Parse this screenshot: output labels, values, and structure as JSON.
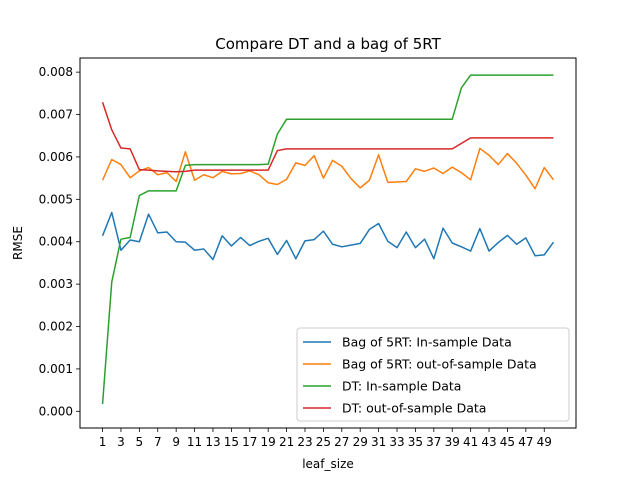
{
  "chart_data": {
    "type": "line",
    "title": "Compare DT and a bag of 5RT",
    "xlabel": "leaf_size",
    "ylabel": "RMSE",
    "xlim": [
      -1.45,
      52.45
    ],
    "ylim": [
      -0.0003935,
      0.0083335
    ],
    "xticks": [
      1,
      3,
      5,
      7,
      9,
      11,
      13,
      15,
      17,
      19,
      21,
      23,
      25,
      27,
      29,
      31,
      33,
      35,
      37,
      39,
      41,
      43,
      45,
      47,
      49
    ],
    "yticks": [
      0.0,
      0.001,
      0.002,
      0.003,
      0.004,
      0.005,
      0.006,
      0.007,
      0.008
    ],
    "ytick_labels": [
      "0.000",
      "0.001",
      "0.002",
      "0.003",
      "0.004",
      "0.005",
      "0.006",
      "0.007",
      "0.008"
    ],
    "grid": false,
    "legend_position": "lower right",
    "x": [
      1,
      2,
      3,
      4,
      5,
      6,
      7,
      8,
      9,
      10,
      11,
      12,
      13,
      14,
      15,
      16,
      17,
      18,
      19,
      20,
      21,
      22,
      23,
      24,
      25,
      26,
      27,
      28,
      29,
      30,
      31,
      32,
      33,
      34,
      35,
      36,
      37,
      38,
      39,
      40,
      41,
      42,
      43,
      44,
      45,
      46,
      47,
      48,
      49,
      50
    ],
    "series": [
      {
        "name": "Bag of 5RT: In-sample Data",
        "color": "#1f77b4",
        "values": [
          0.00414,
          0.00469,
          0.0038,
          0.00404,
          0.004,
          0.00465,
          0.00421,
          0.00423,
          0.004,
          0.00399,
          0.0038,
          0.00383,
          0.00358,
          0.00414,
          0.0039,
          0.0041,
          0.00391,
          0.00401,
          0.00408,
          0.0037,
          0.00403,
          0.0036,
          0.00402,
          0.00405,
          0.00425,
          0.00394,
          0.00388,
          0.00392,
          0.00396,
          0.00429,
          0.00443,
          0.00401,
          0.00386,
          0.00423,
          0.00386,
          0.00406,
          0.0036,
          0.00432,
          0.00397,
          0.00388,
          0.00378,
          0.00431,
          0.00378,
          0.00398,
          0.00415,
          0.00394,
          0.00409,
          0.00367,
          0.00369,
          0.00399
        ]
      },
      {
        "name": "Bag of 5RT: out-of-sample Data",
        "color": "#ff7f0e",
        "values": [
          0.00545,
          0.00594,
          0.00582,
          0.00551,
          0.00567,
          0.00575,
          0.00558,
          0.00563,
          0.00542,
          0.00612,
          0.00545,
          0.00558,
          0.00551,
          0.00566,
          0.0056,
          0.00561,
          0.00567,
          0.00558,
          0.00539,
          0.00535,
          0.00547,
          0.00586,
          0.0058,
          0.00603,
          0.0055,
          0.00592,
          0.00578,
          0.00549,
          0.00527,
          0.00545,
          0.00605,
          0.0054,
          0.00541,
          0.00542,
          0.00572,
          0.00566,
          0.00574,
          0.00561,
          0.00576,
          0.00563,
          0.00546,
          0.0062,
          0.00604,
          0.00582,
          0.00608,
          0.00585,
          0.00557,
          0.00525,
          0.00575,
          0.00546
        ]
      },
      {
        "name": "DT: In-sample Data",
        "color": "#2ca02c",
        "values": [
          0.00017,
          0.00305,
          0.00406,
          0.0041,
          0.00509,
          0.0052,
          0.0052,
          0.0052,
          0.0052,
          0.0058,
          0.00582,
          0.00582,
          0.00582,
          0.00582,
          0.00582,
          0.00582,
          0.00582,
          0.00582,
          0.00583,
          0.00654,
          0.00689,
          0.00689,
          0.00689,
          0.00689,
          0.00689,
          0.00689,
          0.00689,
          0.00689,
          0.00689,
          0.00689,
          0.00689,
          0.00689,
          0.00689,
          0.00689,
          0.00689,
          0.00689,
          0.00689,
          0.00689,
          0.00689,
          0.00763,
          0.00793,
          0.00793,
          0.00793,
          0.00793,
          0.00793,
          0.00793,
          0.00793,
          0.00793,
          0.00793,
          0.00793
        ]
      },
      {
        "name": "DT: out-of-sample Data",
        "color": "#d62728",
        "values": [
          0.00729,
          0.00664,
          0.00621,
          0.00619,
          0.0057,
          0.00569,
          0.00567,
          0.00566,
          0.00565,
          0.00566,
          0.00569,
          0.00569,
          0.00569,
          0.00569,
          0.00569,
          0.00569,
          0.00569,
          0.00569,
          0.00569,
          0.00615,
          0.00619,
          0.00619,
          0.00619,
          0.00619,
          0.00619,
          0.00619,
          0.00619,
          0.00619,
          0.00619,
          0.00619,
          0.00619,
          0.00619,
          0.00619,
          0.00619,
          0.00619,
          0.00619,
          0.00619,
          0.00619,
          0.00619,
          0.00632,
          0.00645,
          0.00645,
          0.00645,
          0.00645,
          0.00645,
          0.00645,
          0.00645,
          0.00645,
          0.00645,
          0.00645
        ]
      }
    ]
  }
}
